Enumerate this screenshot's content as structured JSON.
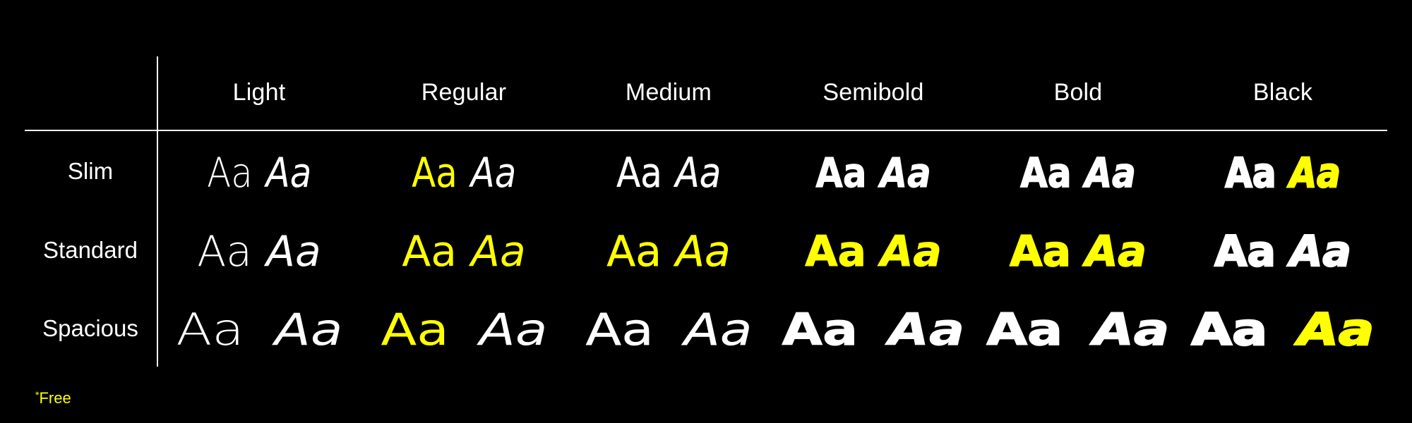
{
  "colors": {
    "background": "#000000",
    "text": "#ffffff",
    "highlight": "#ffff00"
  },
  "columns": [
    "Light",
    "Regular",
    "Medium",
    "Semibold",
    "Bold",
    "Black"
  ],
  "rows": [
    "Slim",
    "Standard",
    "Spacious"
  ],
  "sample_text": "Aa",
  "highlighted": {
    "Slim": {
      "Regular": {
        "upright": true,
        "italic": false
      },
      "Black": {
        "upright": false,
        "italic": true
      }
    },
    "Standard": {
      "Regular": {
        "upright": true,
        "italic": true
      },
      "Medium": {
        "upright": true,
        "italic": true
      },
      "Semibold": {
        "upright": true,
        "italic": true
      },
      "Bold": {
        "upright": true,
        "italic": true
      }
    },
    "Spacious": {
      "Regular": {
        "upright": true,
        "italic": false
      },
      "Black": {
        "upright": false,
        "italic": true
      }
    }
  },
  "footnote": {
    "marker": "*",
    "text": "Free"
  }
}
